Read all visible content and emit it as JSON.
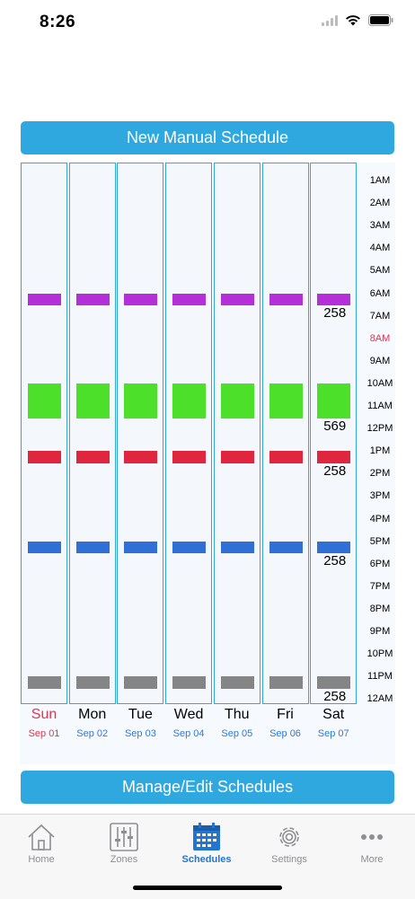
{
  "status": {
    "time": "8:26"
  },
  "buttons": {
    "new_schedule": "New Manual Schedule",
    "manage_schedules": "Manage/Edit Schedules"
  },
  "colors": {
    "purple": "#b52fd9",
    "green": "#4de02a",
    "red": "#e0263f",
    "blue": "#2f6fd6",
    "gray": "#858585",
    "accent": "#2fa8df",
    "today": "#e5334f"
  },
  "time_labels": [
    "1AM",
    "2AM",
    "3AM",
    "4AM",
    "5AM",
    "6AM",
    "7AM",
    "8AM",
    "9AM",
    "10AM",
    "11AM",
    "12PM",
    "1PM",
    "2PM",
    "3PM",
    "4PM",
    "5PM",
    "6PM",
    "7PM",
    "8PM",
    "9PM",
    "10PM",
    "11PM",
    "12AM"
  ],
  "current_time_label": "8AM",
  "days": [
    {
      "name": "Sun",
      "date": "Sep 01",
      "today": true
    },
    {
      "name": "Mon",
      "date": "Sep 02",
      "today": false
    },
    {
      "name": "Tue",
      "date": "Sep 03",
      "today": false
    },
    {
      "name": "Wed",
      "date": "Sep 04",
      "today": false
    },
    {
      "name": "Thu",
      "date": "Sep 05",
      "today": false
    },
    {
      "name": "Fri",
      "date": "Sep 06",
      "today": false
    },
    {
      "name": "Sat",
      "date": "Sep 07",
      "today": false
    }
  ],
  "schedule_blocks": [
    {
      "color": "purple",
      "start_hour": 6.2,
      "end_hour": 6.7,
      "amount_label": "258"
    },
    {
      "color": "green",
      "start_hour": 10.2,
      "end_hour": 11.7,
      "amount_label": "569"
    },
    {
      "color": "red",
      "start_hour": 13.2,
      "end_hour": 13.7,
      "amount_label": "258"
    },
    {
      "color": "blue",
      "start_hour": 17.2,
      "end_hour": 17.7,
      "amount_label": "258"
    },
    {
      "color": "gray",
      "start_hour": 23.2,
      "end_hour": 23.7,
      "amount_label": "258"
    }
  ],
  "amount_labels_day": "Sat",
  "tabs": [
    {
      "label": "Home",
      "icon": "house-icon",
      "active": false
    },
    {
      "label": "Zones",
      "icon": "sliders-icon",
      "active": false
    },
    {
      "label": "Schedules",
      "icon": "calendar-icon",
      "active": true
    },
    {
      "label": "Settings",
      "icon": "gear-icon",
      "active": false
    },
    {
      "label": "More",
      "icon": "ellipsis-icon",
      "active": false
    }
  ]
}
